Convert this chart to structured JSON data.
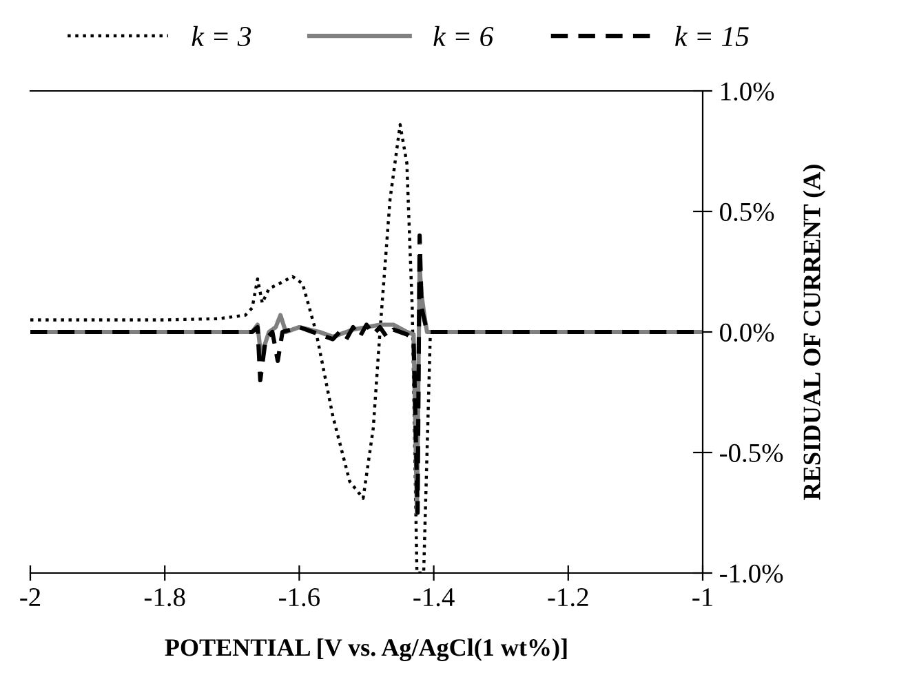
{
  "chart_data": {
    "type": "line",
    "xlabel": "POTENTIAL [V vs. Ag/AgCl(1 wt%)]",
    "ylabel": "RESIDUAL OF CURRENT (A)",
    "xlim": [
      -2,
      -1
    ],
    "xticks": [
      -2,
      -1.8,
      -1.6,
      -1.4,
      -1.2,
      -1
    ],
    "ylim": [
      -1,
      1
    ],
    "yticks": [
      {
        "value": -1,
        "label": "-1.0%"
      },
      {
        "value": -0.5,
        "label": "-0.5%"
      },
      {
        "value": 0,
        "label": "0.0%"
      },
      {
        "value": 0.5,
        "label": "0.5%"
      },
      {
        "value": 1,
        "label": "1.0%"
      }
    ],
    "grid": false,
    "legend": "top",
    "series": [
      {
        "name": "k = 3",
        "color": "#000000",
        "line_style": "dotted",
        "x": [
          -2,
          -1.8,
          -1.72,
          -1.68,
          -1.67,
          -1.662,
          -1.655,
          -1.645,
          -1.63,
          -1.61,
          -1.595,
          -1.585,
          -1.575,
          -1.55,
          -1.525,
          -1.505,
          -1.49,
          -1.48,
          -1.465,
          -1.45,
          -1.44,
          -1.432,
          -1.425,
          -1.42,
          -1.415,
          -1.41,
          -1.405,
          -1.3,
          -1.2,
          -1
        ],
        "values": [
          0.05,
          0.05,
          0.055,
          0.07,
          0.1,
          0.22,
          0.12,
          0.18,
          0.2,
          0.23,
          0.2,
          0.1,
          0.0,
          -0.35,
          -0.62,
          -0.69,
          -0.4,
          0.0,
          0.55,
          0.86,
          0.7,
          0.1,
          -1.0,
          -1.0,
          -1.0,
          -0.5,
          0.0,
          0.0,
          0.0,
          0.0
        ]
      },
      {
        "name": "k = 6",
        "color": "#808080",
        "line_style": "solid",
        "x": [
          -2,
          -1.8,
          -1.67,
          -1.662,
          -1.657,
          -1.645,
          -1.635,
          -1.628,
          -1.62,
          -1.6,
          -1.57,
          -1.55,
          -1.52,
          -1.5,
          -1.48,
          -1.46,
          -1.44,
          -1.43,
          -1.425,
          -1.421,
          -1.418,
          -1.414,
          -1.41,
          -1.3,
          -1.2,
          -1
        ],
        "values": [
          0.0,
          0.0,
          0.0,
          0.03,
          -0.1,
          0.0,
          0.02,
          0.07,
          0.0,
          0.02,
          0.0,
          -0.02,
          0.01,
          0.02,
          0.03,
          0.03,
          0.0,
          -0.01,
          -0.75,
          0.27,
          0.15,
          0.07,
          0.0,
          0.0,
          0.0,
          0.0
        ]
      },
      {
        "name": "k = 15",
        "color": "#000000",
        "line_style": "dashed",
        "x": [
          -2,
          -1.8,
          -1.67,
          -1.662,
          -1.658,
          -1.65,
          -1.64,
          -1.632,
          -1.625,
          -1.6,
          -1.58,
          -1.55,
          -1.54,
          -1.53,
          -1.52,
          -1.51,
          -1.5,
          -1.49,
          -1.48,
          -1.47,
          -1.46,
          -1.44,
          -1.43,
          -1.424,
          -1.421,
          -1.418,
          -1.414,
          -1.41,
          -1.3,
          -1.2,
          -1
        ],
        "values": [
          0.0,
          0.0,
          0.0,
          0.02,
          -0.2,
          -0.03,
          0.0,
          -0.12,
          0.0,
          0.02,
          0.0,
          -0.03,
          0.0,
          -0.03,
          0.02,
          -0.02,
          0.03,
          -0.01,
          0.02,
          -0.02,
          0.01,
          -0.01,
          -0.03,
          -0.75,
          0.4,
          0.1,
          0.05,
          0.0,
          0.0,
          0.0,
          0.0
        ]
      }
    ]
  }
}
